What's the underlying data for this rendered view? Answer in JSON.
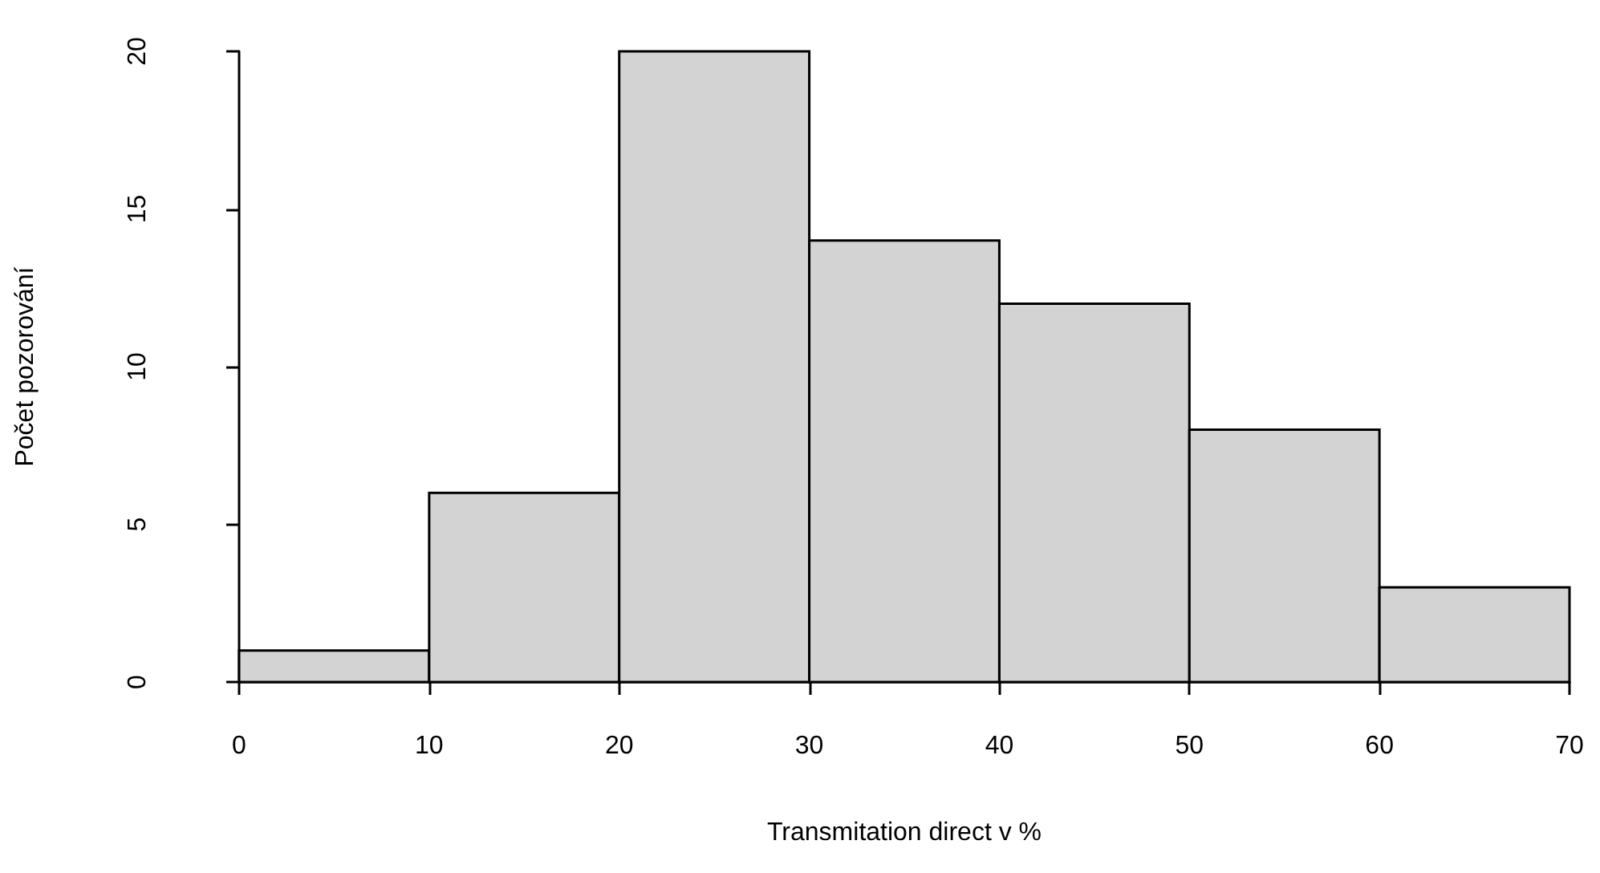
{
  "chart_data": {
    "type": "histogram",
    "xlabel": "Transmitation direct v %",
    "ylabel": "Počet pozorování",
    "bins": [
      0,
      10,
      20,
      30,
      40,
      50,
      60,
      70
    ],
    "values": [
      1,
      6,
      20,
      14,
      12,
      8,
      3
    ],
    "color": "#d3d3d3",
    "xlim": [
      0,
      70
    ],
    "xticks": [
      0,
      10,
      20,
      30,
      40,
      50,
      60,
      70
    ],
    "ylim": [
      0,
      20
    ],
    "yticks": [
      0,
      5,
      10,
      15,
      20
    ]
  }
}
